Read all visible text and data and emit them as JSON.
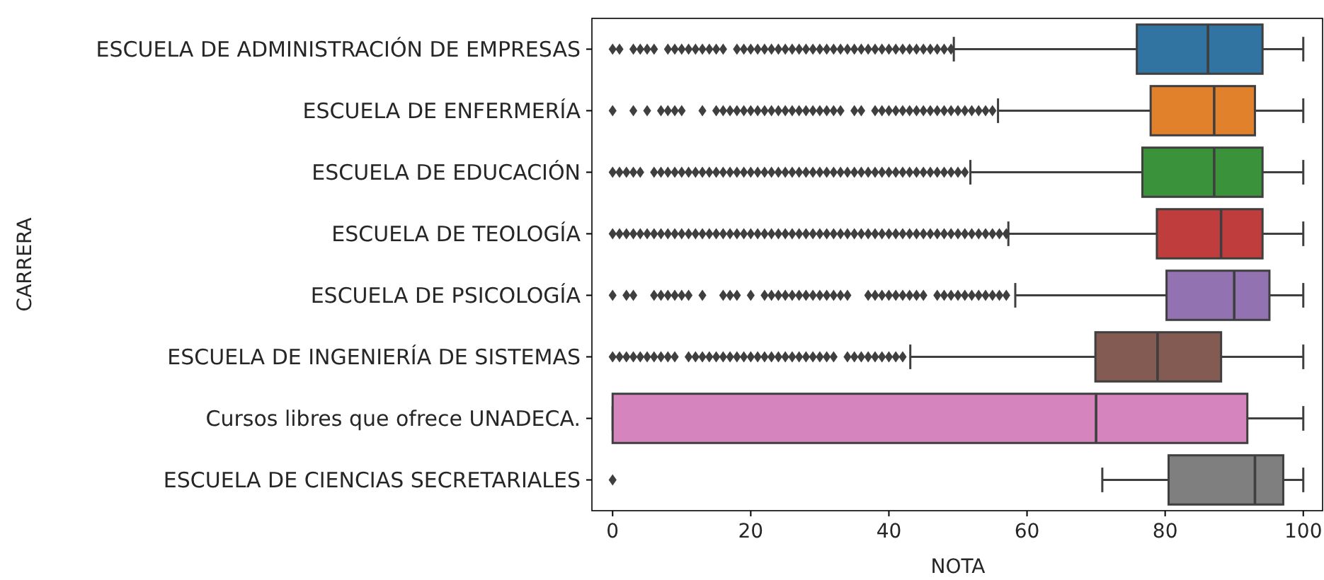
{
  "chart_data": {
    "type": "box",
    "orientation": "horizontal",
    "xlabel": "NOTA",
    "ylabel": "CARRERA",
    "categories": [
      "ESCUELA DE ADMINISTRACIÓN DE EMPRESAS",
      "ESCUELA DE ENFERMERÍA",
      "ESCUELA DE EDUCACIÓN",
      "ESCUELA DE TEOLOGÍA",
      "ESCUELA DE PSICOLOGÍA",
      "ESCUELA DE INGENIERÍA DE SISTEMAS",
      "Cursos libres que ofrece UNADECA.",
      "ESCUELA DE CIENCIAS SECRETARIALES"
    ],
    "colors": [
      "#3274a1",
      "#e1812c",
      "#3a923a",
      "#c03d3e",
      "#9372b2",
      "#845b53",
      "#d684bd",
      "#7f7f7f"
    ],
    "marker": "diamond",
    "boxes": [
      {
        "low": 49.4,
        "q1": 75.9,
        "median": 86.2,
        "q3": 94.1,
        "high": 100,
        "outliers": [
          0,
          1,
          3,
          4,
          5,
          6,
          8,
          9,
          10,
          11,
          12,
          13,
          14,
          15,
          16,
          18,
          19,
          20,
          21,
          22,
          23,
          24,
          25,
          26,
          27,
          28,
          29,
          30,
          31,
          32,
          33,
          34,
          35,
          36,
          37,
          38,
          39,
          40,
          41,
          42,
          43,
          44,
          45,
          46,
          47,
          48,
          49
        ]
      },
      {
        "low": 55.8,
        "q1": 77.9,
        "median": 87.1,
        "q3": 93,
        "high": 100,
        "outliers": [
          0,
          3,
          5,
          7,
          8,
          9,
          10,
          13,
          15,
          16,
          17,
          18,
          19,
          20,
          21,
          22,
          23,
          24,
          25,
          26,
          27,
          28,
          29,
          30,
          31,
          32,
          33,
          35,
          36,
          38,
          39,
          40,
          41,
          42,
          43,
          44,
          45,
          46,
          47,
          48,
          49,
          50,
          51,
          52,
          53,
          54,
          55
        ]
      },
      {
        "low": 51.8,
        "q1": 76.7,
        "median": 87.1,
        "q3": 94.1,
        "high": 100,
        "outliers": [
          0,
          1,
          2,
          3,
          4,
          6,
          7,
          8,
          9,
          10,
          11,
          12,
          13,
          14,
          15,
          16,
          17,
          18,
          19,
          20,
          21,
          22,
          23,
          24,
          25,
          26,
          27,
          28,
          29,
          30,
          31,
          32,
          33,
          34,
          35,
          36,
          37,
          38,
          39,
          40,
          41,
          42,
          43,
          44,
          45,
          46,
          47,
          48,
          49,
          50,
          51
        ]
      },
      {
        "low": 57.3,
        "q1": 78.8,
        "median": 88.1,
        "q3": 94.1,
        "high": 100,
        "outliers": [
          0,
          1,
          2,
          3,
          4,
          5,
          6,
          7,
          8,
          9,
          10,
          11,
          12,
          13,
          14,
          15,
          16,
          17,
          18,
          19,
          20,
          21,
          22,
          23,
          24,
          25,
          26,
          27,
          28,
          29,
          30,
          31,
          32,
          33,
          34,
          35,
          36,
          37,
          38,
          39,
          40,
          41,
          42,
          43,
          44,
          45,
          46,
          47,
          48,
          49,
          50,
          51,
          52,
          53,
          54,
          55,
          56,
          57
        ]
      },
      {
        "low": 58.3,
        "q1": 80.2,
        "median": 90,
        "q3": 95.1,
        "high": 100,
        "outliers": [
          0,
          2,
          3,
          6,
          7,
          8,
          9,
          10,
          11,
          13,
          16,
          17,
          18,
          20,
          22,
          23,
          24,
          25,
          26,
          27,
          28,
          29,
          30,
          31,
          32,
          33,
          34,
          37,
          38,
          39,
          40,
          41,
          42,
          43,
          44,
          45,
          47,
          48,
          49,
          50,
          51,
          52,
          53,
          54,
          55,
          56,
          57
        ]
      },
      {
        "low": 43.1,
        "q1": 69.9,
        "median": 78.9,
        "q3": 88.1,
        "high": 100,
        "outliers": [
          0,
          1,
          2,
          3,
          4,
          5,
          6,
          7,
          8,
          9,
          11,
          12,
          13,
          14,
          15,
          16,
          17,
          18,
          19,
          20,
          21,
          22,
          23,
          24,
          25,
          26,
          27,
          28,
          29,
          30,
          31,
          32,
          34,
          35,
          36,
          37,
          38,
          39,
          40,
          41,
          42
        ]
      },
      {
        "low": 0,
        "q1": 0,
        "median": 70,
        "q3": 91.9,
        "high": 100
      },
      {
        "low": 70.9,
        "q1": 80.5,
        "median": 93,
        "q3": 97.1,
        "high": 100,
        "outliers": [
          0
        ]
      }
    ],
    "xlim": [
      -3,
      103
    ],
    "xticks": [
      0,
      20,
      40,
      60,
      80,
      100
    ],
    "grid": false
  }
}
